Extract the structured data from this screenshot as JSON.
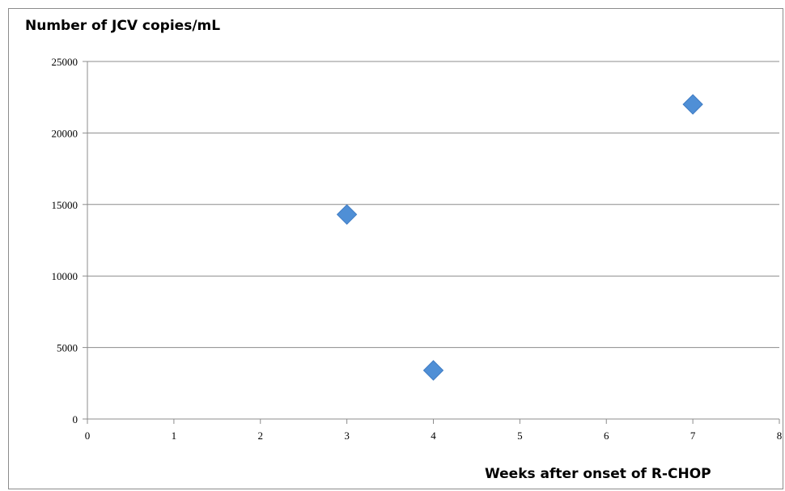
{
  "chart_data": {
    "type": "scatter",
    "ylabel": "Number of JCV copies/mL",
    "xlabel": "Weeks after onset of R-CHOP",
    "xlim": [
      0,
      8
    ],
    "ylim": [
      0,
      25000
    ],
    "x_ticks": [
      0,
      1,
      2,
      3,
      4,
      5,
      6,
      7,
      8
    ],
    "y_ticks": [
      0,
      5000,
      10000,
      15000,
      20000,
      25000
    ],
    "grid": "horizontal",
    "marker": "diamond",
    "marker_color": "#4f8fd6",
    "points": [
      {
        "x": 3,
        "y": 14300
      },
      {
        "x": 4,
        "y": 3400
      },
      {
        "x": 7,
        "y": 22000
      }
    ]
  }
}
